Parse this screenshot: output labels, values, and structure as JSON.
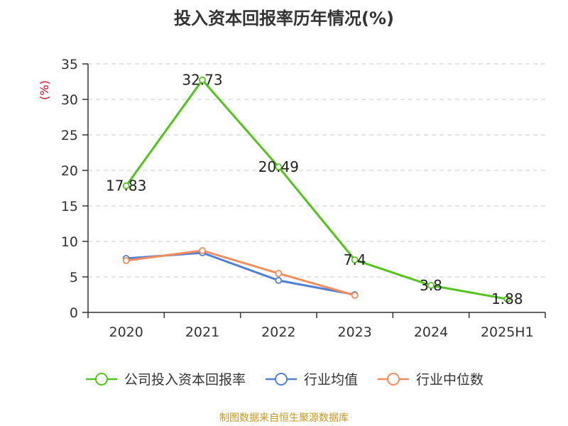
{
  "title": "投入资本回报率历年情况(%)",
  "source": "制图数据来自恒生聚源数据库",
  "chart_data": {
    "type": "line",
    "title": "投入资本回报率历年情况(%)",
    "ylabel": "(%)",
    "xlabel": "",
    "categories": [
      "2020",
      "2021",
      "2022",
      "2023",
      "2024",
      "2025H1"
    ],
    "ylim": [
      0,
      35
    ],
    "yticks": [
      0,
      5,
      10,
      15,
      20,
      25,
      30,
      35
    ],
    "grid": true,
    "legend_position": "bottom",
    "series": [
      {
        "name": "公司投入资本回报率",
        "color": "#52c41a",
        "values": [
          17.83,
          32.73,
          20.49,
          7.4,
          3.8,
          1.88
        ],
        "labels": [
          "17.83",
          "32.73",
          "20.49",
          "7.4",
          "3.8",
          "1.88"
        ]
      },
      {
        "name": "行业均值",
        "color": "#4f7fd9",
        "values": [
          7.6,
          8.4,
          4.5,
          2.5,
          null,
          null
        ]
      },
      {
        "name": "行业中位数",
        "color": "#f28c5a",
        "values": [
          7.3,
          8.7,
          5.5,
          2.4,
          null,
          null
        ]
      }
    ]
  }
}
